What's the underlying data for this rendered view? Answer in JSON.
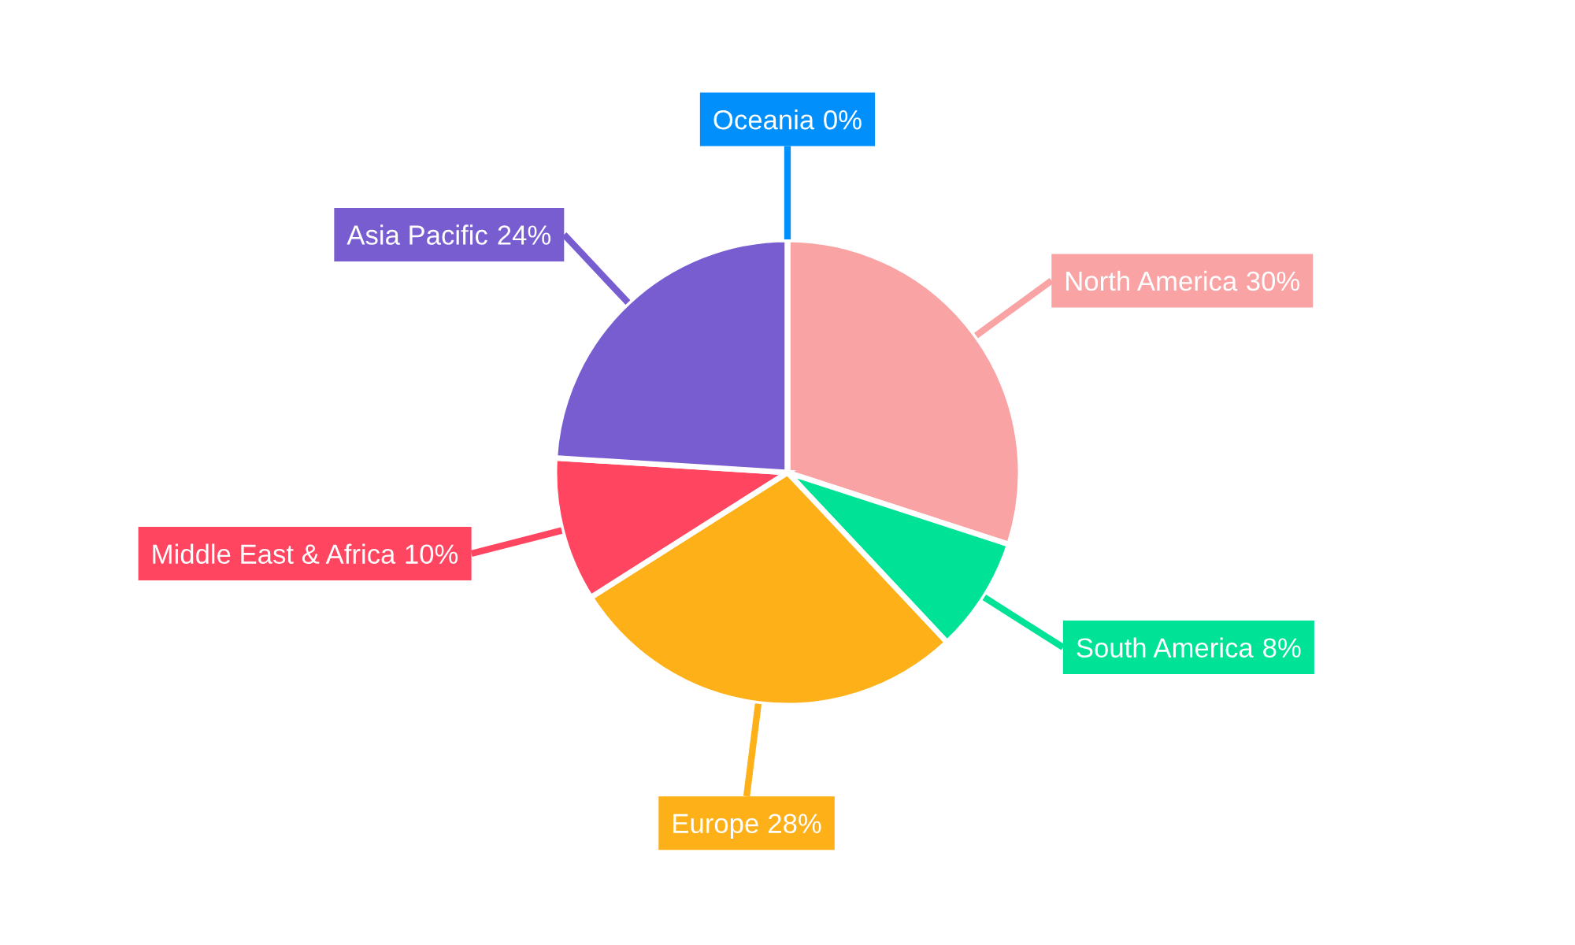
{
  "chart_data": {
    "type": "pie",
    "categories": [
      "North America",
      "South America",
      "Europe",
      "Middle East & Africa",
      "Asia Pacific",
      "Oceania"
    ],
    "values": [
      30,
      8,
      28,
      10,
      24,
      0
    ],
    "colors": [
      "#f9a3a4",
      "#00e396",
      "#feb019",
      "#ff4560",
      "#775dd0",
      "#008ffb"
    ],
    "value_labels": [
      "30%",
      "8%",
      "28%",
      "10%",
      "24%",
      "0%"
    ],
    "legend": false
  }
}
